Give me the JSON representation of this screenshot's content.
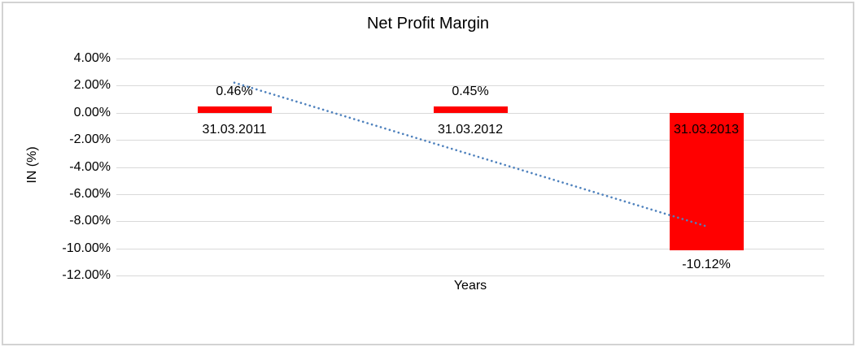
{
  "chart_data": {
    "type": "bar",
    "title": "Net Profit Margin",
    "xlabel": "Years",
    "ylabel": "IN (%)",
    "categories": [
      "31.03.2011",
      "31.03.2012",
      "31.03.2013"
    ],
    "series": [
      {
        "name": "Net Profit Margin",
        "values": [
          0.46,
          0.45,
          -10.12
        ]
      }
    ],
    "data_labels": [
      "0.46%",
      "0.45%",
      "-10.12%"
    ],
    "y_ticks": [
      {
        "label": "4.00%",
        "value": 4
      },
      {
        "label": "2.00%",
        "value": 2
      },
      {
        "label": "0.00%",
        "value": 0
      },
      {
        "label": "-2.00%",
        "value": -2
      },
      {
        "label": "-4.00%",
        "value": -4
      },
      {
        "label": "-6.00%",
        "value": -6
      },
      {
        "label": "-8.00%",
        "value": -8
      },
      {
        "label": "-10.00%",
        "value": -10
      },
      {
        "label": "-12.00%",
        "value": -12
      }
    ],
    "ylim": [
      -12,
      4
    ],
    "grid": true,
    "legend_position": "none",
    "bar_color": "#ff0000",
    "gridline_color": "#d9d9d9",
    "trendline": {
      "type": "linear",
      "style": "dotted",
      "color": "#4e81bd",
      "start_value": 2.22,
      "end_value": -8.36
    }
  }
}
